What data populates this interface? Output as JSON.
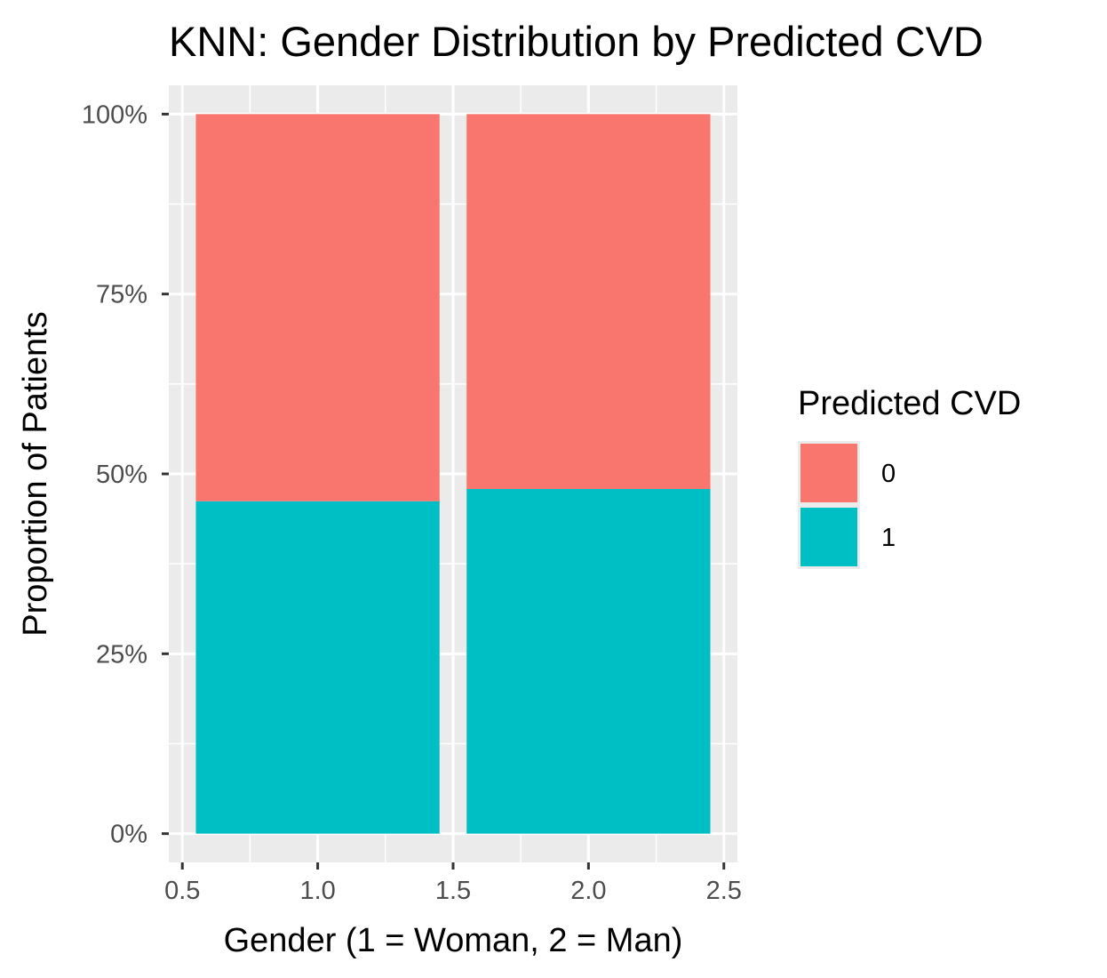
{
  "chart_data": {
    "type": "bar",
    "stacked": true,
    "normalized": true,
    "title": "KNN: Gender Distribution by Predicted CVD",
    "xlabel": "Gender (1 = Woman, 2 = Man)",
    "ylabel": "Proportion of Patients",
    "xlim": [
      0.45,
      2.55
    ],
    "ylim": [
      -0.04,
      1.04
    ],
    "x_ticks": [
      0.5,
      1.0,
      1.5,
      2.0,
      2.5
    ],
    "x_tick_labels": [
      "0.5",
      "1.0",
      "1.5",
      "2.0",
      "2.5"
    ],
    "y_ticks": [
      0,
      0.25,
      0.5,
      0.75,
      1.0
    ],
    "y_tick_labels": [
      "0%",
      "25%",
      "50%",
      "75%",
      "100%"
    ],
    "x": [
      1,
      2
    ],
    "bar_width": 0.9,
    "series": [
      {
        "name": "1",
        "color": "#00BFC4",
        "values": [
          0.462,
          0.479
        ]
      },
      {
        "name": "0",
        "color": "#F8766D",
        "values": [
          0.538,
          0.521
        ]
      }
    ],
    "grid": true,
    "panel_background": "#EBEBEB",
    "legend": {
      "title": "Predicted CVD",
      "position": "right",
      "entries": [
        {
          "label": "0",
          "color": "#F8766D"
        },
        {
          "label": "1",
          "color": "#00BFC4"
        }
      ]
    }
  }
}
